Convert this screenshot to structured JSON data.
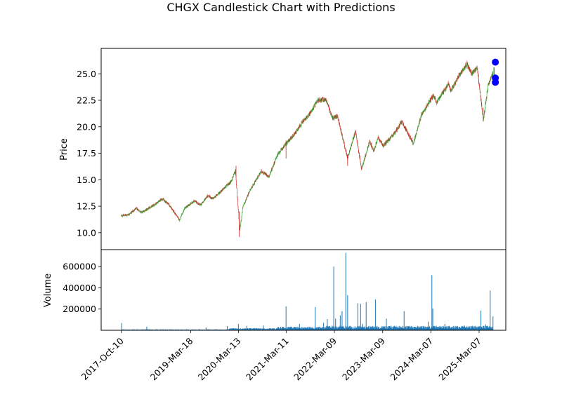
{
  "chart_data": {
    "type": "candlestick",
    "title": "CHGX Candlestick Chart with Predictions",
    "price_panel": {
      "ylabel": "Price",
      "ylim": [
        8.4,
        27.4
      ],
      "yticks": [
        10.0,
        12.5,
        15.0,
        17.5,
        20.0,
        22.5,
        25.0
      ],
      "ytick_labels": [
        "10.0",
        "12.5",
        "15.0",
        "17.5",
        "20.0",
        "22.5",
        "25.0"
      ],
      "up_color": "#2ca02c",
      "down_color": "#d62728",
      "price_path": [
        [
          "2017-10-10",
          11.6
        ],
        [
          "2017-12-01",
          11.7
        ],
        [
          "2018-02-01",
          12.3
        ],
        [
          "2018-03-10",
          11.9
        ],
        [
          "2018-06-01",
          12.5
        ],
        [
          "2018-08-15",
          13.2
        ],
        [
          "2018-10-01",
          12.7
        ],
        [
          "2018-12-24",
          11.2
        ],
        [
          "2019-02-01",
          12.3
        ],
        [
          "2019-04-15",
          13.0
        ],
        [
          "2019-06-01",
          12.6
        ],
        [
          "2019-07-25",
          13.5
        ],
        [
          "2019-09-01",
          13.2
        ],
        [
          "2019-11-01",
          13.9
        ],
        [
          "2020-01-15",
          14.8
        ],
        [
          "2020-02-19",
          15.8
        ],
        [
          "2020-03-23",
          10.2
        ],
        [
          "2020-04-15",
          12.4
        ],
        [
          "2020-06-08",
          14.0
        ],
        [
          "2020-09-02",
          15.8
        ],
        [
          "2020-10-30",
          15.3
        ],
        [
          "2020-12-31",
          17.3
        ],
        [
          "2021-03-01",
          18.3
        ],
        [
          "2021-05-10",
          19.3
        ],
        [
          "2021-07-01",
          20.3
        ],
        [
          "2021-09-01",
          21.2
        ],
        [
          "2021-11-05",
          22.5
        ],
        [
          "2022-01-03",
          22.6
        ],
        [
          "2022-02-23",
          20.8
        ],
        [
          "2022-04-01",
          21.0
        ],
        [
          "2022-06-16",
          17.0
        ],
        [
          "2022-08-15",
          19.6
        ],
        [
          "2022-09-30",
          16.0
        ],
        [
          "2022-11-30",
          18.6
        ],
        [
          "2022-12-30",
          17.7
        ],
        [
          "2023-02-01",
          19.0
        ],
        [
          "2023-03-13",
          18.2
        ],
        [
          "2023-06-01",
          19.3
        ],
        [
          "2023-07-31",
          20.5
        ],
        [
          "2023-10-27",
          18.4
        ],
        [
          "2023-12-29",
          21.2
        ],
        [
          "2024-03-28",
          23.0
        ],
        [
          "2024-04-19",
          22.3
        ],
        [
          "2024-07-16",
          24.0
        ],
        [
          "2024-08-05",
          23.4
        ],
        [
          "2024-10-15",
          25.0
        ],
        [
          "2024-12-06",
          25.9
        ],
        [
          "2025-01-10",
          25.0
        ],
        [
          "2025-02-19",
          25.6
        ],
        [
          "2025-04-08",
          20.7
        ],
        [
          "2025-05-15",
          24.0
        ],
        [
          "2025-06-20",
          25.1
        ]
      ],
      "prediction_line_x": "2025-06-28",
      "prediction_line_range": [
        24.0,
        25.6
      ],
      "predictions": [
        {
          "date": "2025-07-08",
          "price": 26.1
        },
        {
          "date": "2025-07-08",
          "price": 24.6
        },
        {
          "date": "2025-07-08",
          "price": 24.2
        }
      ],
      "prediction_color": "#0000ff",
      "prediction_line_color": "#2ca02c"
    },
    "volume_panel": {
      "ylabel": "Volume",
      "ylim": [
        0,
        760000
      ],
      "yticks": [
        200000,
        400000,
        600000
      ],
      "ytick_labels": [
        "200000",
        "400000",
        "600000"
      ],
      "bar_color": "#1f77b4",
      "volume_spikes": [
        [
          "2017-10-12",
          68000
        ],
        [
          "2018-04-20",
          35000
        ],
        [
          "2019-07-12",
          26000
        ],
        [
          "2019-12-20",
          40000
        ],
        [
          "2020-03-13",
          60000
        ],
        [
          "2020-05-15",
          42000
        ],
        [
          "2020-09-18",
          45000
        ],
        [
          "2021-03-08",
          225000
        ],
        [
          "2021-06-18",
          60000
        ],
        [
          "2021-10-15",
          220000
        ],
        [
          "2021-12-17",
          70000
        ],
        [
          "2022-01-14",
          105000
        ],
        [
          "2022-03-04",
          600000
        ],
        [
          "2022-03-18",
          110000
        ],
        [
          "2022-04-22",
          140000
        ],
        [
          "2022-05-06",
          180000
        ],
        [
          "2022-06-03",
          730000
        ],
        [
          "2022-06-17",
          330000
        ],
        [
          "2022-09-02",
          255000
        ],
        [
          "2022-09-23",
          250000
        ],
        [
          "2022-10-07",
          60000
        ],
        [
          "2022-11-04",
          265000
        ],
        [
          "2023-01-13",
          290000
        ],
        [
          "2023-04-06",
          110000
        ],
        [
          "2023-08-18",
          180000
        ],
        [
          "2024-02-16",
          80000
        ],
        [
          "2024-03-15",
          520000
        ],
        [
          "2024-03-22",
          205000
        ],
        [
          "2024-06-21",
          60000
        ],
        [
          "2024-11-15",
          45000
        ],
        [
          "2025-03-21",
          185000
        ],
        [
          "2025-04-25",
          55000
        ],
        [
          "2025-05-30",
          375000
        ],
        [
          "2025-06-20",
          130000
        ]
      ]
    },
    "x_axis": {
      "start": "2017-10-10",
      "end": "2025-07-08",
      "xlim": [
        "2017-05-10",
        "2025-09-25"
      ],
      "ticks": [
        "2017-10-10",
        "2019-03-18",
        "2020-03-13",
        "2021-03-11",
        "2022-03-09",
        "2023-03-09",
        "2024-03-07",
        "2025-03-07"
      ],
      "tick_labels": [
        "2017-Oct-10",
        "2019-Mar-18",
        "2020-Mar-13",
        "2021-Mar-11",
        "2022-Mar-09",
        "2023-Mar-09",
        "2024-Mar-07",
        "2025-Mar-07"
      ]
    },
    "grid": false,
    "legend": "none"
  }
}
